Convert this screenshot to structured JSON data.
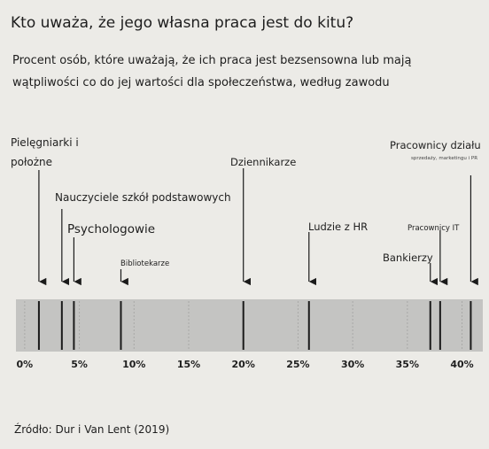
{
  "chart_data": {
    "type": "strip",
    "title": "Kto uważa, że jego własna praca jest do kitu?",
    "subtitle": "Procent osób, które uważają, że ich praca jest bezsensowna lub mają wątpliwości co do jej wartości dla społeczeństwa, według zawodu",
    "categories": [
      "Pielęgniarki i położne",
      "Nauczyciele szkół podstawowych",
      "Psychologowie",
      "Bibliotekarze",
      "Dziennikarze",
      "Ludzie z HR",
      "Bankierzy",
      "Pracownicy IT",
      "Pracownicy działu"
    ],
    "annotations": [
      "sprzedaży, marketingu i PR"
    ],
    "values": [
      1.3,
      3.4,
      4.5,
      8.8,
      20,
      26,
      37.1,
      38,
      40.8
    ],
    "color": "#1a1a1a",
    "xlim": [
      -0.8,
      41.9
    ],
    "xticks": [
      {
        "value": 0,
        "label": "0%"
      },
      {
        "value": 5,
        "label": "5%"
      },
      {
        "value": 10,
        "label": "10%"
      },
      {
        "value": 15,
        "label": "15%"
      },
      {
        "value": 20,
        "label": "20%"
      },
      {
        "value": 25,
        "label": "25%"
      },
      {
        "value": 30,
        "label": "30%"
      },
      {
        "value": 35,
        "label": "35%"
      },
      {
        "value": 40,
        "label": "40%"
      }
    ],
    "source": "Źródło: Dur i Van Lent (2019)"
  }
}
